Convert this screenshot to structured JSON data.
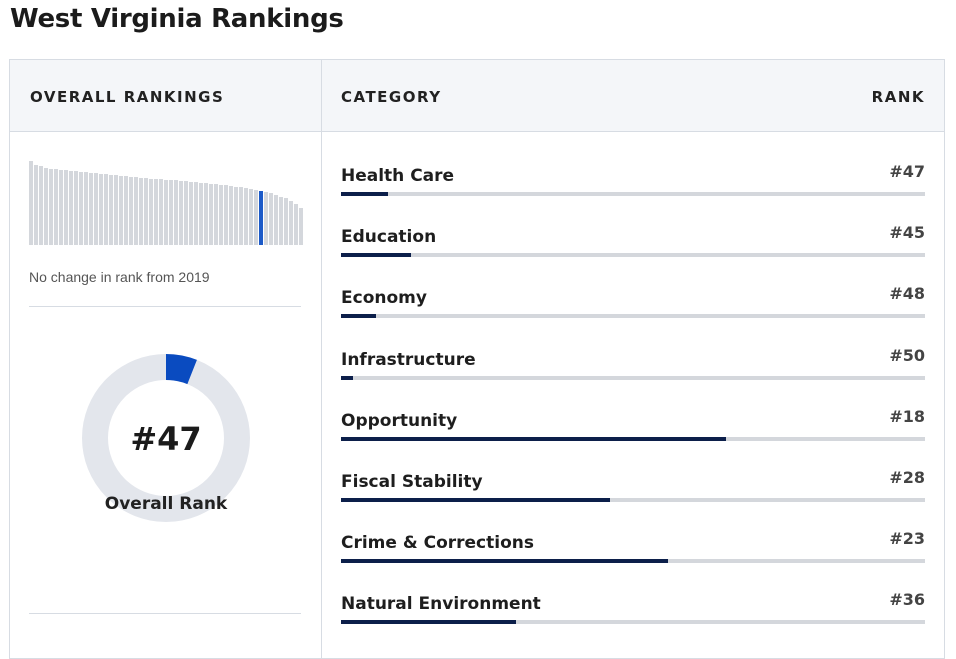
{
  "page_title": "West Virginia Rankings",
  "headers": {
    "overall": "OVERALL RANKINGS",
    "category": "CATEGORY",
    "rank": "RANK"
  },
  "mini_chart": {
    "heights": [
      84,
      80,
      79,
      77,
      76,
      76,
      75,
      75,
      74,
      74,
      73,
      73,
      72,
      72,
      71,
      71,
      70,
      70,
      69,
      69,
      68,
      68,
      67,
      67,
      66,
      66,
      66,
      65,
      65,
      65,
      64,
      64,
      63,
      63,
      62,
      62,
      61,
      61,
      60,
      60,
      59,
      58,
      58,
      57,
      56,
      55,
      54,
      53,
      52,
      50,
      48,
      47,
      44,
      41,
      37
    ],
    "highlight_index": 46,
    "bar_color": "#d4d7dc",
    "highlight_color": "#1c5ac8"
  },
  "change_text": "No change in rank from 2019",
  "overall": {
    "rank_text": "#47",
    "label": "Overall Rank",
    "fill_fraction": 0.06,
    "accent": "#0a4bc0",
    "track": "#e3e6ec"
  },
  "categories": [
    {
      "name": "Health Care",
      "rank": "#47",
      "fill": 0.08
    },
    {
      "name": "Education",
      "rank": "#45",
      "fill": 0.12
    },
    {
      "name": "Economy",
      "rank": "#48",
      "fill": 0.06
    },
    {
      "name": "Infrastructure",
      "rank": "#50",
      "fill": 0.02
    },
    {
      "name": "Opportunity",
      "rank": "#18",
      "fill": 0.66
    },
    {
      "name": "Fiscal Stability",
      "rank": "#28",
      "fill": 0.46
    },
    {
      "name": "Crime & Corrections",
      "rank": "#23",
      "fill": 0.56
    },
    {
      "name": "Natural Environment",
      "rank": "#36",
      "fill": 0.3
    }
  ]
}
